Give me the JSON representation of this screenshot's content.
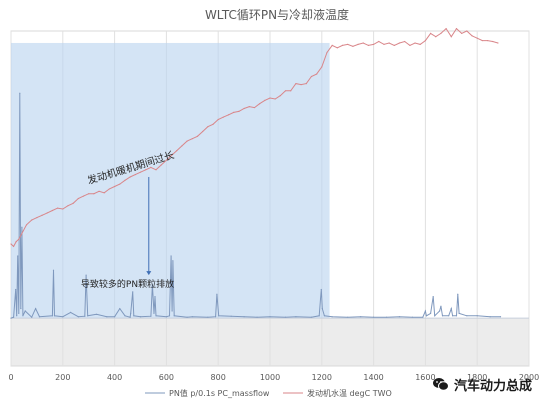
{
  "chart_data": {
    "type": "line",
    "title": "WLTC循环PN与冷却液温度",
    "xlim": [
      0,
      2000
    ],
    "xticks": [
      0,
      200,
      400,
      600,
      800,
      1000,
      1200,
      1400,
      1600,
      1800,
      2000
    ],
    "xtick_labels": [
      "0",
      "200",
      "400",
      "600",
      "800",
      "1000",
      "1200",
      "1400",
      "1600",
      "1800",
      "2000"
    ],
    "ylim": [
      0,
      7
    ],
    "grid": true,
    "legend_position": "bottom",
    "colors": {
      "pn": "#7f98bd",
      "temp": "#d9868a",
      "highlight": "#bdd6ef",
      "lower_band": "#ececec",
      "grid": "#e0e0e0",
      "annotation": "#3f6fb5"
    },
    "highlight_region": {
      "x": [
        0,
        1230
      ]
    },
    "series": [
      {
        "name": "PN值 p/0.1s PC_massflow",
        "points": [
          [
            0,
            1.0
          ],
          [
            10,
            1.02
          ],
          [
            18,
            1.6
          ],
          [
            22,
            1.05
          ],
          [
            26,
            2.3
          ],
          [
            30,
            1.1
          ],
          [
            34,
            5.7
          ],
          [
            38,
            1.2
          ],
          [
            42,
            2.9
          ],
          [
            46,
            1.05
          ],
          [
            55,
            1.15
          ],
          [
            80,
            1.02
          ],
          [
            95,
            1.2
          ],
          [
            110,
            1.03
          ],
          [
            160,
            1.05
          ],
          [
            164,
            2.0
          ],
          [
            168,
            1.05
          ],
          [
            200,
            1.03
          ],
          [
            230,
            1.12
          ],
          [
            260,
            1.03
          ],
          [
            285,
            1.04
          ],
          [
            290,
            1.9
          ],
          [
            296,
            1.05
          ],
          [
            330,
            1.08
          ],
          [
            370,
            1.03
          ],
          [
            400,
            1.03
          ],
          [
            420,
            1.2
          ],
          [
            440,
            1.05
          ],
          [
            460,
            1.02
          ],
          [
            462,
            1.1
          ],
          [
            470,
            1.55
          ],
          [
            474,
            1.05
          ],
          [
            500,
            1.03
          ],
          [
            540,
            1.04
          ],
          [
            546,
            1.7
          ],
          [
            552,
            1.1
          ],
          [
            556,
            1.45
          ],
          [
            560,
            1.05
          ],
          [
            600,
            1.03
          ],
          [
            612,
            1.05
          ],
          [
            618,
            2.3
          ],
          [
            622,
            1.15
          ],
          [
            625,
            2.2
          ],
          [
            630,
            1.05
          ],
          [
            680,
            1.02
          ],
          [
            700,
            1.03
          ],
          [
            760,
            1.02
          ],
          [
            790,
            1.03
          ],
          [
            795,
            1.5
          ],
          [
            802,
            1.05
          ],
          [
            850,
            1.04
          ],
          [
            900,
            1.03
          ],
          [
            950,
            1.02
          ],
          [
            1000,
            1.03
          ],
          [
            1060,
            1.02
          ],
          [
            1100,
            1.03
          ],
          [
            1160,
            1.02
          ],
          [
            1190,
            1.05
          ],
          [
            1195,
            1.4
          ],
          [
            1198,
            1.6
          ],
          [
            1202,
            1.2
          ],
          [
            1210,
            1.05
          ],
          [
            1240,
            1.03
          ],
          [
            1300,
            1.02
          ],
          [
            1350,
            1.03
          ],
          [
            1400,
            1.02
          ],
          [
            1450,
            1.02
          ],
          [
            1500,
            1.03
          ],
          [
            1550,
            1.02
          ],
          [
            1590,
            1.02
          ],
          [
            1600,
            1.15
          ],
          [
            1604,
            1.05
          ],
          [
            1620,
            1.1
          ],
          [
            1630,
            1.45
          ],
          [
            1636,
            1.05
          ],
          [
            1655,
            1.15
          ],
          [
            1660,
            1.25
          ],
          [
            1666,
            1.05
          ],
          [
            1690,
            1.05
          ],
          [
            1700,
            1.2
          ],
          [
            1705,
            1.05
          ],
          [
            1720,
            1.05
          ],
          [
            1725,
            1.5
          ],
          [
            1730,
            1.1
          ],
          [
            1760,
            1.05
          ],
          [
            1800,
            1.05
          ],
          [
            1850,
            1.03
          ],
          [
            1890,
            1.03
          ]
        ]
      },
      {
        "name": "发动机水温 degC TWO",
        "points": [
          [
            0,
            2.55
          ],
          [
            10,
            2.5
          ],
          [
            20,
            2.6
          ],
          [
            30,
            2.65
          ],
          [
            40,
            2.75
          ],
          [
            60,
            2.95
          ],
          [
            80,
            3.05
          ],
          [
            100,
            3.1
          ],
          [
            120,
            3.15
          ],
          [
            140,
            3.2
          ],
          [
            160,
            3.25
          ],
          [
            180,
            3.3
          ],
          [
            200,
            3.28
          ],
          [
            220,
            3.35
          ],
          [
            240,
            3.4
          ],
          [
            260,
            3.5
          ],
          [
            280,
            3.55
          ],
          [
            300,
            3.6
          ],
          [
            320,
            3.6
          ],
          [
            340,
            3.65
          ],
          [
            360,
            3.62
          ],
          [
            380,
            3.7
          ],
          [
            400,
            3.75
          ],
          [
            420,
            3.8
          ],
          [
            440,
            3.88
          ],
          [
            460,
            3.95
          ],
          [
            480,
            4.0
          ],
          [
            500,
            4.05
          ],
          [
            520,
            4.1
          ],
          [
            540,
            4.15
          ],
          [
            560,
            4.1
          ],
          [
            580,
            4.2
          ],
          [
            600,
            4.3
          ],
          [
            620,
            4.4
          ],
          [
            640,
            4.5
          ],
          [
            660,
            4.6
          ],
          [
            680,
            4.7
          ],
          [
            700,
            4.75
          ],
          [
            720,
            4.8
          ],
          [
            740,
            4.9
          ],
          [
            760,
            5.0
          ],
          [
            780,
            5.05
          ],
          [
            800,
            5.15
          ],
          [
            820,
            5.2
          ],
          [
            840,
            5.25
          ],
          [
            860,
            5.3
          ],
          [
            880,
            5.32
          ],
          [
            900,
            5.38
          ],
          [
            920,
            5.42
          ],
          [
            940,
            5.4
          ],
          [
            960,
            5.48
          ],
          [
            980,
            5.55
          ],
          [
            1000,
            5.6
          ],
          [
            1020,
            5.58
          ],
          [
            1040,
            5.65
          ],
          [
            1060,
            5.75
          ],
          [
            1080,
            5.75
          ],
          [
            1100,
            5.9
          ],
          [
            1120,
            5.88
          ],
          [
            1140,
            5.9
          ],
          [
            1160,
            6.05
          ],
          [
            1180,
            6.1
          ],
          [
            1200,
            6.25
          ],
          [
            1220,
            6.55
          ],
          [
            1240,
            6.7
          ],
          [
            1260,
            6.65
          ],
          [
            1280,
            6.7
          ],
          [
            1300,
            6.72
          ],
          [
            1320,
            6.68
          ],
          [
            1340,
            6.72
          ],
          [
            1360,
            6.75
          ],
          [
            1380,
            6.7
          ],
          [
            1400,
            6.72
          ],
          [
            1420,
            6.78
          ],
          [
            1440,
            6.72
          ],
          [
            1460,
            6.75
          ],
          [
            1480,
            6.7
          ],
          [
            1500,
            6.75
          ],
          [
            1520,
            6.78
          ],
          [
            1540,
            6.7
          ],
          [
            1560,
            6.75
          ],
          [
            1580,
            6.72
          ],
          [
            1600,
            6.8
          ],
          [
            1620,
            6.95
          ],
          [
            1640,
            6.88
          ],
          [
            1660,
            6.95
          ],
          [
            1680,
            7.05
          ],
          [
            1700,
            6.88
          ],
          [
            1720,
            7.05
          ],
          [
            1740,
            6.95
          ],
          [
            1760,
            7.0
          ],
          [
            1780,
            6.9
          ],
          [
            1800,
            6.85
          ],
          [
            1820,
            6.8
          ],
          [
            1840,
            6.8
          ],
          [
            1860,
            6.78
          ],
          [
            1880,
            6.75
          ]
        ]
      }
    ],
    "annotations": [
      {
        "id": "annot-warmup",
        "text": "发动机暖机期间过长",
        "x": 300,
        "y": 3.8
      },
      {
        "id": "annot-pn",
        "text": "导致较多的PN颗粒排放",
        "x": 270,
        "y": 1.65
      }
    ],
    "annotation_arrow": {
      "from": [
        532,
        3.95
      ],
      "to": [
        532,
        1.9
      ]
    }
  },
  "watermark": {
    "text": "汽车动力总成",
    "icon": "wechat-icon"
  }
}
